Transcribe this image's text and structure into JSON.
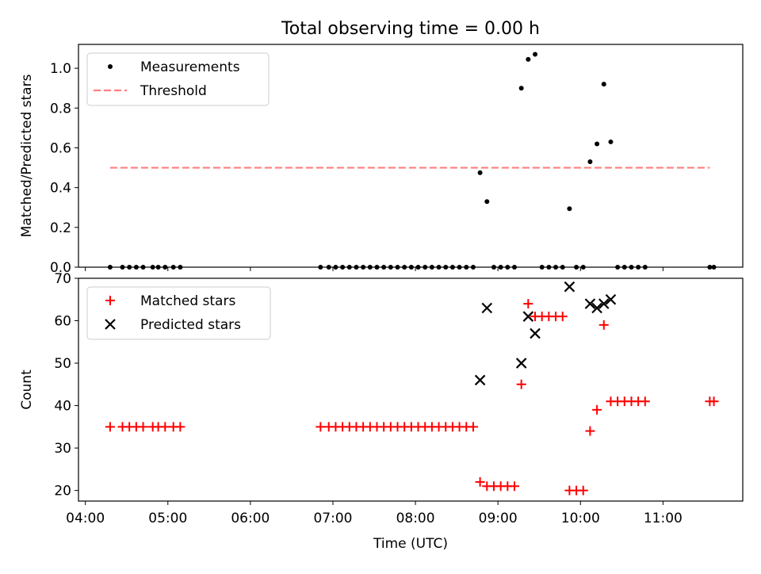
{
  "chart_data": [
    {
      "type": "scatter",
      "title": "Total observing time = 0.00 h",
      "ylabel": "Matched/Predicted stars",
      "xlabel": "",
      "ylim": [
        0.0,
        1.12
      ],
      "yticks": [
        "0.0",
        "0.2",
        "0.4",
        "0.6",
        "0.8",
        "1.0"
      ],
      "legend_position": "top-left",
      "grid": false,
      "series": [
        {
          "name": "Measurements",
          "kind": "dots",
          "color": "#000000",
          "points": [
            [
              "04:18",
              0.0
            ],
            [
              "04:27",
              0.0
            ],
            [
              "04:32",
              0.0
            ],
            [
              "04:37",
              0.0
            ],
            [
              "04:42",
              0.0
            ],
            [
              "04:49",
              0.0
            ],
            [
              "04:53",
              0.0
            ],
            [
              "04:58",
              0.0
            ],
            [
              "05:04",
              0.0
            ],
            [
              "05:09",
              0.0
            ],
            [
              "06:51",
              0.0
            ],
            [
              "06:57",
              0.0
            ],
            [
              "07:02",
              0.0
            ],
            [
              "07:07",
              0.0
            ],
            [
              "07:12",
              0.0
            ],
            [
              "07:17",
              0.0
            ],
            [
              "07:22",
              0.0
            ],
            [
              "07:27",
              0.0
            ],
            [
              "07:32",
              0.0
            ],
            [
              "07:37",
              0.0
            ],
            [
              "07:42",
              0.0
            ],
            [
              "07:47",
              0.0
            ],
            [
              "07:52",
              0.0
            ],
            [
              "07:57",
              0.0
            ],
            [
              "08:02",
              0.0
            ],
            [
              "08:07",
              0.0
            ],
            [
              "08:12",
              0.0
            ],
            [
              "08:17",
              0.0
            ],
            [
              "08:22",
              0.0
            ],
            [
              "08:27",
              0.0
            ],
            [
              "08:32",
              0.0
            ],
            [
              "08:37",
              0.0
            ],
            [
              "08:42",
              0.0
            ],
            [
              "08:47",
              0.475
            ],
            [
              "08:52",
              0.33
            ],
            [
              "08:57",
              0.0
            ],
            [
              "09:02",
              0.0
            ],
            [
              "09:07",
              0.0
            ],
            [
              "09:12",
              0.0
            ],
            [
              "09:17",
              0.9
            ],
            [
              "09:22",
              1.045
            ],
            [
              "09:27",
              1.07
            ],
            [
              "09:32",
              0.0
            ],
            [
              "09:37",
              0.0
            ],
            [
              "09:42",
              0.0
            ],
            [
              "09:47",
              0.0
            ],
            [
              "09:52",
              0.294
            ],
            [
              "09:57",
              0.0
            ],
            [
              "10:02",
              0.0
            ],
            [
              "10:07",
              0.53
            ],
            [
              "10:12",
              0.62
            ],
            [
              "10:17",
              0.92
            ],
            [
              "10:22",
              0.63
            ],
            [
              "10:27",
              0.0
            ],
            [
              "10:32",
              0.0
            ],
            [
              "10:37",
              0.0
            ],
            [
              "10:42",
              0.0
            ],
            [
              "10:47",
              0.0
            ],
            [
              "11:34",
              0.0
            ],
            [
              "11:37",
              0.0
            ]
          ]
        },
        {
          "name": "Threshold",
          "kind": "dashed-line",
          "color": "#ff7f7f",
          "points": [
            [
              "04:18",
              0.5
            ],
            [
              "11:34",
              0.5
            ]
          ]
        }
      ]
    },
    {
      "type": "scatter",
      "title": "",
      "ylabel": "Count",
      "xlabel": "Time (UTC)",
      "ylim": [
        17.5,
        70
      ],
      "yticks": [
        "20",
        "30",
        "40",
        "50",
        "60",
        "70"
      ],
      "legend_position": "top-left",
      "grid": false,
      "series": [
        {
          "name": "Matched stars",
          "kind": "plus",
          "color": "#ff0000",
          "points": [
            [
              "04:18",
              35
            ],
            [
              "04:27",
              35
            ],
            [
              "04:32",
              35
            ],
            [
              "04:37",
              35
            ],
            [
              "04:42",
              35
            ],
            [
              "04:49",
              35
            ],
            [
              "04:53",
              35
            ],
            [
              "04:58",
              35
            ],
            [
              "05:04",
              35
            ],
            [
              "05:09",
              35
            ],
            [
              "06:51",
              35
            ],
            [
              "06:57",
              35
            ],
            [
              "07:02",
              35
            ],
            [
              "07:07",
              35
            ],
            [
              "07:12",
              35
            ],
            [
              "07:17",
              35
            ],
            [
              "07:22",
              35
            ],
            [
              "07:27",
              35
            ],
            [
              "07:32",
              35
            ],
            [
              "07:37",
              35
            ],
            [
              "07:42",
              35
            ],
            [
              "07:47",
              35
            ],
            [
              "07:52",
              35
            ],
            [
              "07:57",
              35
            ],
            [
              "08:02",
              35
            ],
            [
              "08:07",
              35
            ],
            [
              "08:12",
              35
            ],
            [
              "08:17",
              35
            ],
            [
              "08:22",
              35
            ],
            [
              "08:27",
              35
            ],
            [
              "08:32",
              35
            ],
            [
              "08:37",
              35
            ],
            [
              "08:42",
              35
            ],
            [
              "08:47",
              22
            ],
            [
              "08:52",
              21
            ],
            [
              "08:57",
              21
            ],
            [
              "09:02",
              21
            ],
            [
              "09:07",
              21
            ],
            [
              "09:12",
              21
            ],
            [
              "09:17",
              45
            ],
            [
              "09:22",
              64
            ],
            [
              "09:27",
              61
            ],
            [
              "09:32",
              61
            ],
            [
              "09:37",
              61
            ],
            [
              "09:42",
              61
            ],
            [
              "09:47",
              61
            ],
            [
              "09:52",
              20
            ],
            [
              "09:57",
              20
            ],
            [
              "10:02",
              20
            ],
            [
              "10:07",
              34
            ],
            [
              "10:12",
              39
            ],
            [
              "10:17",
              59
            ],
            [
              "10:22",
              41
            ],
            [
              "10:27",
              41
            ],
            [
              "10:32",
              41
            ],
            [
              "10:37",
              41
            ],
            [
              "10:42",
              41
            ],
            [
              "10:47",
              41
            ],
            [
              "11:34",
              41
            ],
            [
              "11:37",
              41
            ]
          ]
        },
        {
          "name": "Predicted stars",
          "kind": "x",
          "color": "#000000",
          "points": [
            [
              "08:47",
              46
            ],
            [
              "08:52",
              63
            ],
            [
              "09:17",
              50
            ],
            [
              "09:22",
              61
            ],
            [
              "09:27",
              57
            ],
            [
              "09:52",
              68
            ],
            [
              "10:07",
              64
            ],
            [
              "10:12",
              63
            ],
            [
              "10:17",
              64
            ],
            [
              "10:22",
              65
            ]
          ]
        }
      ]
    }
  ],
  "xaxis": {
    "min": "03:55",
    "max": "11:58",
    "ticks": [
      "04:00",
      "05:00",
      "06:00",
      "07:00",
      "08:00",
      "09:00",
      "10:00",
      "11:00"
    ]
  }
}
